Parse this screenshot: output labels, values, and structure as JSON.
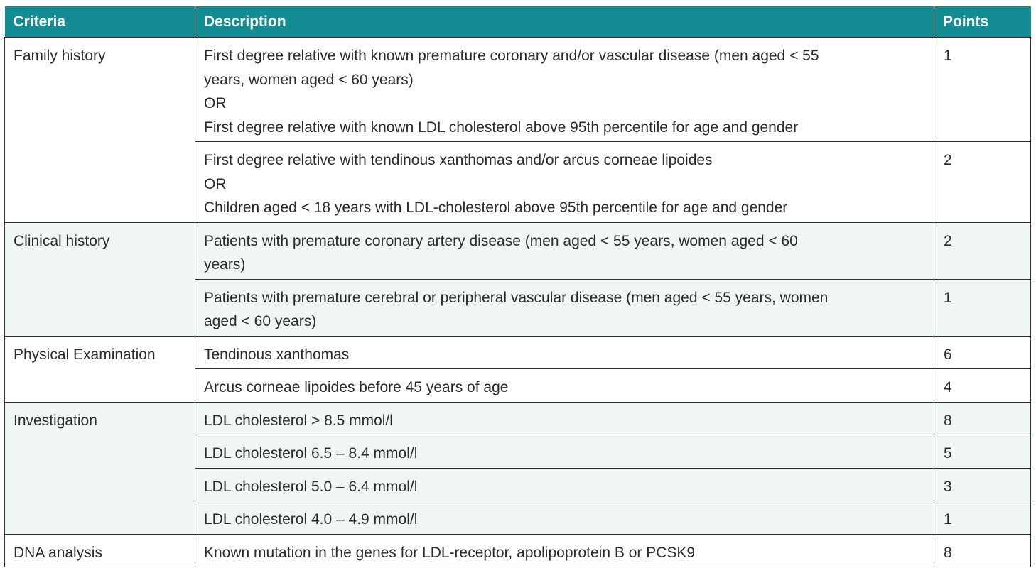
{
  "header": {
    "criteria": "Criteria",
    "description": "Description",
    "points": "Points"
  },
  "groups": [
    {
      "criteria": "Family history",
      "rows": [
        {
          "lines": [
            "First degree relative with known premature coronary and/or vascular disease (men aged < 55",
            "years, women aged < 60 years)",
            "OR",
            "First degree relative with known LDL cholesterol above 95th percentile for age and gender"
          ],
          "points": "1"
        },
        {
          "lines": [
            "First degree relative with tendinous xanthomas and/or arcus corneae lipoides",
            "OR",
            "Children aged < 18 years with LDL-cholesterol above 95th percentile for age and gender"
          ],
          "points": "2"
        }
      ]
    },
    {
      "criteria": "Clinical history",
      "rows": [
        {
          "lines": [
            "Patients with premature coronary artery disease (men aged < 55 years, women aged < 60",
            "years)"
          ],
          "points": "2"
        },
        {
          "lines": [
            "Patients with premature cerebral or peripheral vascular disease (men aged < 55 years, women",
            "aged < 60 years)"
          ],
          "points": "1"
        }
      ]
    },
    {
      "criteria": "Physical Examination",
      "rows": [
        {
          "lines": [
            "Tendinous xanthomas"
          ],
          "points": "6"
        },
        {
          "lines": [
            "Arcus corneae lipoides before 45 years of age"
          ],
          "points": "4"
        }
      ]
    },
    {
      "criteria": "Investigation",
      "rows": [
        {
          "lines": [
            "LDL cholesterol > 8.5 mmol/l"
          ],
          "points": "8"
        },
        {
          "lines": [
            "LDL cholesterol 6.5 – 8.4 mmol/l"
          ],
          "points": "5"
        },
        {
          "lines": [
            "LDL cholesterol 5.0 – 6.4 mmol/l"
          ],
          "points": "3"
        },
        {
          "lines": [
            "LDL cholesterol 4.0 – 4.9 mmol/l"
          ],
          "points": "1"
        }
      ]
    },
    {
      "criteria": "DNA analysis",
      "rows": [
        {
          "lines": [
            "Known mutation in the genes for LDL-receptor, apolipoprotein B or PCSK9"
          ],
          "points": "8"
        }
      ]
    }
  ],
  "colors": {
    "header_bg": "#138d93",
    "header_text": "#ffffff",
    "alt_row_bg": "#f0f5f6",
    "border": "#2f2f2f"
  }
}
